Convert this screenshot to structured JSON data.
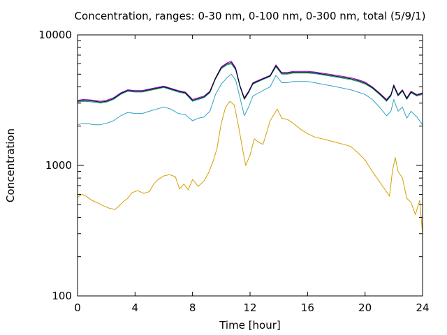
{
  "chart_data": {
    "type": "line",
    "title": "Concentration, ranges: 0-30 nm, 0-100 nm, 0-300 nm, total (5/9/1)",
    "xlabel": "Time [hour]",
    "ylabel": "Concentration",
    "xlim": [
      0,
      24
    ],
    "ylim": [
      100,
      10000
    ],
    "yscale": "log",
    "xticks": [
      0,
      4,
      8,
      12,
      16,
      20,
      24
    ],
    "xtick_labels": [
      "0",
      "4",
      "8",
      "12",
      "16",
      "20",
      "24"
    ],
    "yticks": [
      100,
      1000,
      10000
    ],
    "ytick_labels": [
      "100",
      "1000",
      "10000"
    ],
    "grid": false,
    "legend": "none",
    "series": [
      {
        "color": "#d4a000",
        "points": [
          [
            0,
            570
          ],
          [
            0.3,
            600
          ],
          [
            0.6,
            580
          ],
          [
            1.0,
            540
          ],
          [
            1.5,
            510
          ],
          [
            1.8,
            490
          ],
          [
            2.2,
            470
          ],
          [
            2.6,
            460
          ],
          [
            2.9,
            490
          ],
          [
            3.2,
            530
          ],
          [
            3.5,
            560
          ],
          [
            3.8,
            620
          ],
          [
            4.2,
            640
          ],
          [
            4.6,
            610
          ],
          [
            5.0,
            630
          ],
          [
            5.3,
            720
          ],
          [
            5.6,
            780
          ],
          [
            6.0,
            830
          ],
          [
            6.4,
            850
          ],
          [
            6.8,
            820
          ],
          [
            7.1,
            660
          ],
          [
            7.4,
            720
          ],
          [
            7.7,
            650
          ],
          [
            8.0,
            780
          ],
          [
            8.4,
            690
          ],
          [
            8.8,
            760
          ],
          [
            9.1,
            870
          ],
          [
            9.4,
            1050
          ],
          [
            9.7,
            1350
          ],
          [
            10.0,
            2100
          ],
          [
            10.3,
            2800
          ],
          [
            10.6,
            3100
          ],
          [
            10.9,
            2900
          ],
          [
            11.2,
            2000
          ],
          [
            11.5,
            1300
          ],
          [
            11.7,
            1000
          ],
          [
            12.0,
            1200
          ],
          [
            12.3,
            1600
          ],
          [
            12.6,
            1500
          ],
          [
            12.9,
            1450
          ],
          [
            13.1,
            1700
          ],
          [
            13.4,
            2200
          ],
          [
            13.7,
            2500
          ],
          [
            13.9,
            2700
          ],
          [
            14.2,
            2300
          ],
          [
            14.6,
            2250
          ],
          [
            15.0,
            2100
          ],
          [
            15.5,
            1900
          ],
          [
            16.0,
            1750
          ],
          [
            16.5,
            1650
          ],
          [
            17.0,
            1600
          ],
          [
            17.5,
            1550
          ],
          [
            18.0,
            1500
          ],
          [
            18.5,
            1450
          ],
          [
            19.0,
            1400
          ],
          [
            19.5,
            1250
          ],
          [
            20.0,
            1100
          ],
          [
            20.5,
            900
          ],
          [
            21.0,
            750
          ],
          [
            21.4,
            650
          ],
          [
            21.7,
            580
          ],
          [
            21.9,
            900
          ],
          [
            22.1,
            1150
          ],
          [
            22.3,
            900
          ],
          [
            22.6,
            800
          ],
          [
            22.9,
            560
          ],
          [
            23.2,
            520
          ],
          [
            23.5,
            420
          ],
          [
            23.8,
            540
          ],
          [
            24.0,
            300
          ]
        ]
      },
      {
        "color": "#2fa3c6",
        "points": [
          [
            0,
            2050
          ],
          [
            0.4,
            2100
          ],
          [
            0.8,
            2080
          ],
          [
            1.2,
            2050
          ],
          [
            1.6,
            2050
          ],
          [
            2.0,
            2100
          ],
          [
            2.5,
            2200
          ],
          [
            3.0,
            2400
          ],
          [
            3.5,
            2550
          ],
          [
            4.0,
            2500
          ],
          [
            4.5,
            2500
          ],
          [
            5.0,
            2600
          ],
          [
            5.5,
            2700
          ],
          [
            6.0,
            2800
          ],
          [
            6.5,
            2700
          ],
          [
            7.0,
            2500
          ],
          [
            7.5,
            2450
          ],
          [
            8.0,
            2200
          ],
          [
            8.4,
            2300
          ],
          [
            8.8,
            2350
          ],
          [
            9.2,
            2600
          ],
          [
            9.6,
            3500
          ],
          [
            10.0,
            4200
          ],
          [
            10.4,
            4700
          ],
          [
            10.7,
            5000
          ],
          [
            11.0,
            4500
          ],
          [
            11.3,
            3300
          ],
          [
            11.6,
            2400
          ],
          [
            11.9,
            2800
          ],
          [
            12.2,
            3400
          ],
          [
            12.6,
            3600
          ],
          [
            13.0,
            3800
          ],
          [
            13.4,
            4000
          ],
          [
            13.8,
            4900
          ],
          [
            14.2,
            4300
          ],
          [
            14.6,
            4300
          ],
          [
            15.0,
            4400
          ],
          [
            15.5,
            4400
          ],
          [
            16.0,
            4400
          ],
          [
            16.5,
            4300
          ],
          [
            17.0,
            4200
          ],
          [
            17.5,
            4100
          ],
          [
            18.0,
            4000
          ],
          [
            18.5,
            3900
          ],
          [
            19.0,
            3800
          ],
          [
            19.5,
            3650
          ],
          [
            20.0,
            3500
          ],
          [
            20.5,
            3200
          ],
          [
            21.0,
            2800
          ],
          [
            21.5,
            2400
          ],
          [
            21.8,
            2600
          ],
          [
            22.0,
            3200
          ],
          [
            22.3,
            2600
          ],
          [
            22.6,
            2800
          ],
          [
            22.9,
            2300
          ],
          [
            23.2,
            2600
          ],
          [
            23.6,
            2350
          ],
          [
            24.0,
            2050
          ]
        ]
      },
      {
        "color": "#009e73",
        "points": [
          [
            0,
            3050
          ],
          [
            0.4,
            3100
          ],
          [
            0.8,
            3080
          ],
          [
            1.2,
            3050
          ],
          [
            1.6,
            3000
          ],
          [
            2.0,
            3050
          ],
          [
            2.5,
            3200
          ],
          [
            3.0,
            3500
          ],
          [
            3.5,
            3700
          ],
          [
            4.0,
            3650
          ],
          [
            4.5,
            3650
          ],
          [
            5.0,
            3750
          ],
          [
            5.5,
            3850
          ],
          [
            6.0,
            3950
          ],
          [
            6.5,
            3800
          ],
          [
            7.0,
            3650
          ],
          [
            7.5,
            3550
          ],
          [
            8.0,
            3100
          ],
          [
            8.4,
            3200
          ],
          [
            8.8,
            3300
          ],
          [
            9.2,
            3600
          ],
          [
            9.6,
            4600
          ],
          [
            10.0,
            5500
          ],
          [
            10.4,
            5900
          ],
          [
            10.7,
            6000
          ],
          [
            11.0,
            5400
          ],
          [
            11.3,
            4000
          ],
          [
            11.6,
            3200
          ],
          [
            11.9,
            3600
          ],
          [
            12.2,
            4200
          ],
          [
            12.6,
            4400
          ],
          [
            13.0,
            4600
          ],
          [
            13.4,
            4800
          ],
          [
            13.8,
            5700
          ],
          [
            14.2,
            5000
          ],
          [
            14.6,
            5000
          ],
          [
            15.0,
            5100
          ],
          [
            15.5,
            5100
          ],
          [
            16.0,
            5100
          ],
          [
            16.5,
            5050
          ],
          [
            17.0,
            4950
          ],
          [
            17.5,
            4850
          ],
          [
            18.0,
            4750
          ],
          [
            18.5,
            4650
          ],
          [
            19.0,
            4550
          ],
          [
            19.5,
            4400
          ],
          [
            20.0,
            4200
          ],
          [
            20.5,
            3900
          ],
          [
            21.0,
            3500
          ],
          [
            21.5,
            3100
          ],
          [
            21.8,
            3400
          ],
          [
            22.0,
            4000
          ],
          [
            22.3,
            3400
          ],
          [
            22.6,
            3700
          ],
          [
            22.9,
            3200
          ],
          [
            23.2,
            3600
          ],
          [
            23.6,
            3400
          ],
          [
            24.0,
            3500
          ]
        ]
      },
      {
        "color": "#9400d3",
        "points": [
          [
            0,
            3150
          ],
          [
            0.4,
            3200
          ],
          [
            0.8,
            3180
          ],
          [
            1.2,
            3150
          ],
          [
            1.6,
            3100
          ],
          [
            2.0,
            3150
          ],
          [
            2.5,
            3300
          ],
          [
            3.0,
            3600
          ],
          [
            3.5,
            3800
          ],
          [
            4.0,
            3750
          ],
          [
            4.5,
            3750
          ],
          [
            5.0,
            3850
          ],
          [
            5.5,
            3950
          ],
          [
            6.0,
            4050
          ],
          [
            6.5,
            3900
          ],
          [
            7.0,
            3750
          ],
          [
            7.5,
            3650
          ],
          [
            8.0,
            3200
          ],
          [
            8.4,
            3300
          ],
          [
            8.8,
            3400
          ],
          [
            9.2,
            3700
          ],
          [
            9.6,
            4700
          ],
          [
            10.0,
            5700
          ],
          [
            10.4,
            6100
          ],
          [
            10.7,
            6300
          ],
          [
            11.0,
            5600
          ],
          [
            11.3,
            4100
          ],
          [
            11.6,
            3300
          ],
          [
            11.9,
            3700
          ],
          [
            12.2,
            4300
          ],
          [
            12.6,
            4500
          ],
          [
            13.0,
            4700
          ],
          [
            13.4,
            4900
          ],
          [
            13.8,
            5900
          ],
          [
            14.2,
            5150
          ],
          [
            14.6,
            5150
          ],
          [
            15.0,
            5250
          ],
          [
            15.5,
            5250
          ],
          [
            16.0,
            5250
          ],
          [
            16.5,
            5200
          ],
          [
            17.0,
            5100
          ],
          [
            17.5,
            5000
          ],
          [
            18.0,
            4900
          ],
          [
            18.5,
            4800
          ],
          [
            19.0,
            4700
          ],
          [
            19.5,
            4550
          ],
          [
            20.0,
            4350
          ],
          [
            20.5,
            4000
          ],
          [
            21.0,
            3600
          ],
          [
            21.5,
            3200
          ],
          [
            21.8,
            3500
          ],
          [
            22.0,
            4150
          ],
          [
            22.3,
            3500
          ],
          [
            22.6,
            3800
          ],
          [
            22.9,
            3300
          ],
          [
            23.2,
            3700
          ],
          [
            23.6,
            3500
          ],
          [
            24.0,
            3600
          ]
        ]
      },
      {
        "color": "#000000",
        "points": [
          [
            0,
            3100
          ],
          [
            0.4,
            3150
          ],
          [
            0.8,
            3130
          ],
          [
            1.2,
            3100
          ],
          [
            1.6,
            3050
          ],
          [
            2.0,
            3100
          ],
          [
            2.5,
            3250
          ],
          [
            3.0,
            3550
          ],
          [
            3.5,
            3750
          ],
          [
            4.0,
            3700
          ],
          [
            4.5,
            3700
          ],
          [
            5.0,
            3800
          ],
          [
            5.5,
            3900
          ],
          [
            6.0,
            4000
          ],
          [
            6.5,
            3850
          ],
          [
            7.0,
            3700
          ],
          [
            7.5,
            3600
          ],
          [
            8.0,
            3150
          ],
          [
            8.4,
            3250
          ],
          [
            8.8,
            3350
          ],
          [
            9.2,
            3650
          ],
          [
            9.6,
            4650
          ],
          [
            10.0,
            5600
          ],
          [
            10.4,
            6000
          ],
          [
            10.7,
            6150
          ],
          [
            11.0,
            5500
          ],
          [
            11.3,
            4050
          ],
          [
            11.6,
            3250
          ],
          [
            11.9,
            3650
          ],
          [
            12.2,
            4250
          ],
          [
            12.6,
            4450
          ],
          [
            13.0,
            4650
          ],
          [
            13.4,
            4850
          ],
          [
            13.8,
            5800
          ],
          [
            14.2,
            5080
          ],
          [
            14.6,
            5080
          ],
          [
            15.0,
            5180
          ],
          [
            15.5,
            5180
          ],
          [
            16.0,
            5180
          ],
          [
            16.5,
            5120
          ],
          [
            17.0,
            5020
          ],
          [
            17.5,
            4920
          ],
          [
            18.0,
            4820
          ],
          [
            18.5,
            4720
          ],
          [
            19.0,
            4620
          ],
          [
            19.5,
            4470
          ],
          [
            20.0,
            4270
          ],
          [
            20.5,
            3950
          ],
          [
            21.0,
            3550
          ],
          [
            21.5,
            3150
          ],
          [
            21.8,
            3450
          ],
          [
            22.0,
            4080
          ],
          [
            22.3,
            3450
          ],
          [
            22.6,
            3750
          ],
          [
            22.9,
            3250
          ],
          [
            23.2,
            3650
          ],
          [
            23.6,
            3450
          ],
          [
            24.0,
            3550
          ]
        ]
      }
    ]
  }
}
